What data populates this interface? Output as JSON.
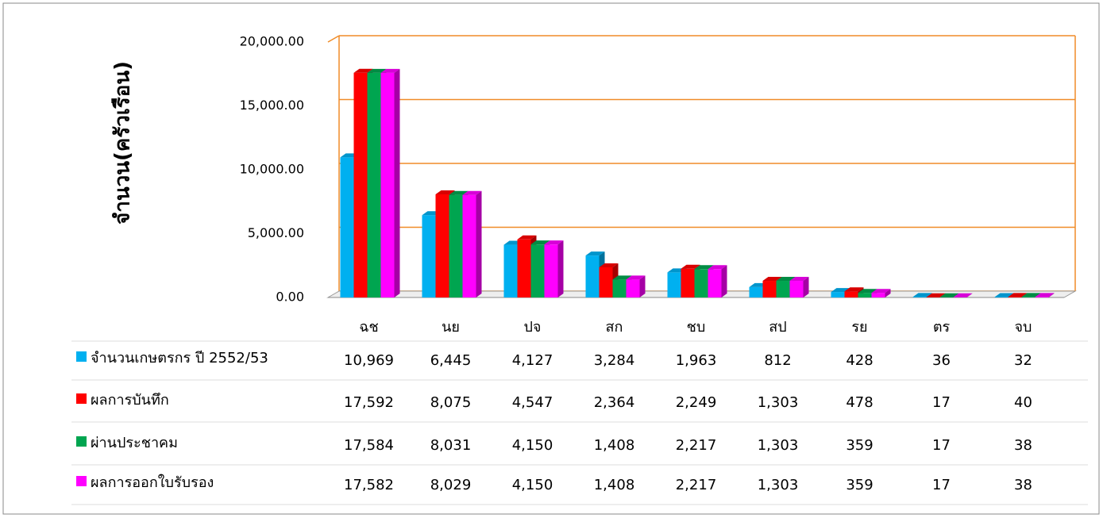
{
  "chart_data": {
    "type": "bar",
    "y_label": "จำนวน(ครัวเรือน)",
    "categories": [
      "ฉช",
      "นย",
      "ปจ",
      "สก",
      "ชบ",
      "สป",
      "รย",
      "ตร",
      "จบ"
    ],
    "series": [
      {
        "name": "จำนวนเกษตรกร ปี 2552/53",
        "color": "#00b0f0",
        "values": [
          10969,
          6445,
          4127,
          3284,
          1963,
          812,
          428,
          36,
          32
        ],
        "value_labels": [
          "10,969",
          "6,445",
          "4,127",
          "3,284",
          "1,963",
          "812",
          "428",
          "36",
          "32"
        ]
      },
      {
        "name": "ผลการบันทึก",
        "color": "#ff0000",
        "values": [
          17592,
          8075,
          4547,
          2364,
          2249,
          1303,
          478,
          17,
          40
        ],
        "value_labels": [
          "17,592",
          "8,075",
          "4,547",
          "2,364",
          "2,249",
          "1,303",
          "478",
          "17",
          "40"
        ]
      },
      {
        "name": "ผ่านประชาคม",
        "color": "#00a550",
        "values": [
          17584,
          8031,
          4150,
          1408,
          2217,
          1303,
          359,
          17,
          38
        ],
        "value_labels": [
          "17,584",
          "8,031",
          "4,150",
          "1,408",
          "2,217",
          "1,303",
          "359",
          "17",
          "38"
        ]
      },
      {
        "name": "ผลการออกใบรับรอง",
        "color": "#ff00ff",
        "values": [
          17582,
          8029,
          4150,
          1408,
          2217,
          1303,
          359,
          17,
          38
        ],
        "value_labels": [
          "17,582",
          "8,029",
          "4,150",
          "1,408",
          "2,217",
          "1,303",
          "359",
          "17",
          "38"
        ]
      }
    ],
    "ylim": [
      0,
      20000
    ],
    "yticks": [
      {
        "value": 0,
        "label": "0.00"
      },
      {
        "value": 5000,
        "label": "5,000.00"
      },
      {
        "value": 10000,
        "label": "10,000.00"
      },
      {
        "value": 15000,
        "label": "15,000.00"
      },
      {
        "value": 20000,
        "label": "20,000.00"
      }
    ],
    "grid": true,
    "grid_color": "#f08c28"
  }
}
